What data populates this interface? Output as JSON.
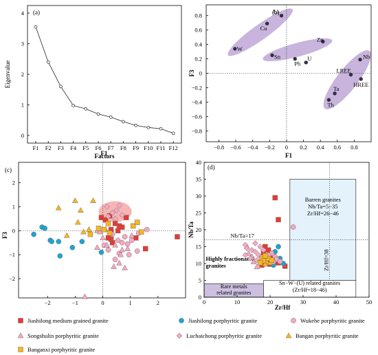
{
  "chart_data": [
    {
      "panel": "(a)",
      "type": "line",
      "ylabel": "Eigenvalue",
      "xlabel": "Factors",
      "categories": [
        "F1",
        "F2",
        "F3",
        "F4",
        "F5",
        "F6",
        "F7",
        "F8",
        "F9",
        "F10",
        "F11",
        "F12"
      ],
      "values": [
        3.55,
        2.4,
        1.6,
        0.98,
        0.87,
        0.7,
        0.6,
        0.45,
        0.33,
        0.26,
        0.22,
        0.07
      ],
      "ylim": [
        -0.25,
        4.25
      ],
      "yticks": [
        0,
        1,
        2,
        3,
        4
      ]
    },
    {
      "panel": "(b)",
      "type": "scatter",
      "xlabel": "F1",
      "ylabel": "F3",
      "xlim": [
        -0.95,
        1.0
      ],
      "ylim": [
        -0.95,
        0.95
      ],
      "xticks": [
        -0.8,
        -0.6,
        -0.4,
        -0.2,
        0,
        0.2,
        0.4,
        0.6,
        0.8
      ],
      "yticks": [
        -0.8,
        -0.6,
        -0.4,
        -0.2,
        0,
        0.2,
        0.4,
        0.6,
        0.8
      ],
      "points": [
        {
          "label": "Li",
          "x": -0.06,
          "y": 0.8
        },
        {
          "label": "Cu",
          "x": -0.23,
          "y": 0.69
        },
        {
          "label": "W",
          "x": -0.61,
          "y": 0.34
        },
        {
          "label": "Sn",
          "x": -0.17,
          "y": 0.25
        },
        {
          "label": "Pb",
          "x": 0.1,
          "y": 0.2
        },
        {
          "label": "U",
          "x": 0.23,
          "y": 0.15
        },
        {
          "label": "Zn",
          "x": 0.43,
          "y": 0.44
        },
        {
          "label": "Nb",
          "x": 0.87,
          "y": 0.19
        },
        {
          "label": "LREE",
          "x": 0.76,
          "y": -0.02
        },
        {
          "label": "HREE",
          "x": 0.88,
          "y": -0.08
        },
        {
          "label": "Ta",
          "x": 0.57,
          "y": -0.28
        },
        {
          "label": "Th",
          "x": 0.5,
          "y": -0.37
        }
      ],
      "groups": [
        [
          "Li",
          "Cu",
          "W"
        ],
        [
          "Sn",
          "Pb",
          "U",
          "Zn"
        ],
        [
          "Nb",
          "LREE",
          "HREE",
          "Ta",
          "Th"
        ]
      ]
    },
    {
      "panel": "(c)",
      "type": "scatter",
      "xlabel": "F1",
      "ylabel": "F3",
      "xlim": [
        -3.05,
        3.0
      ],
      "ylim": [
        -2.8,
        2.85
      ],
      "xticks": [
        -2,
        -1,
        0,
        1,
        2
      ],
      "yticks": [
        -2,
        -1,
        0,
        1,
        2
      ],
      "series": [
        {
          "name": "Jiashilong medium grained granite",
          "marker": "square",
          "color": "#e53a33",
          "points": [
            [
              -0.05,
              0.55
            ],
            [
              0.1,
              0.45
            ],
            [
              0.25,
              0.62
            ],
            [
              0.45,
              0.3
            ],
            [
              0.6,
              0.2
            ],
            [
              0.7,
              0.15
            ],
            [
              0.3,
              0.05
            ],
            [
              0.55,
              0.0
            ],
            [
              0.85,
              0.55
            ],
            [
              1.2,
              -0.3
            ],
            [
              1.55,
              -0.75
            ],
            [
              2.7,
              -0.25
            ],
            [
              0.3,
              -0.35
            ],
            [
              0.35,
              -0.5
            ],
            [
              0.2,
              -0.3
            ]
          ]
        },
        {
          "name": "Jiashilong porphyritic granite",
          "marker": "circle",
          "color": "#1aa6d3",
          "points": [
            [
              -2.2,
              0.15
            ],
            [
              -2.1,
              0.1
            ],
            [
              -2.5,
              -0.15
            ],
            [
              -1.9,
              -0.4
            ],
            [
              -1.85,
              -0.45
            ],
            [
              -1.6,
              -0.45
            ],
            [
              -1.55,
              -1.05
            ],
            [
              -1.1,
              -0.7
            ],
            [
              -0.75,
              -0.45
            ],
            [
              -0.05,
              -0.9
            ]
          ]
        },
        {
          "name": "Wukehe porphyritic granite",
          "marker": "circle",
          "color": "#f3a9c2",
          "points": [
            [
              0.35,
              -0.15
            ],
            [
              0.55,
              -0.4
            ],
            [
              0.7,
              -0.5
            ],
            [
              0.9,
              -0.55
            ],
            [
              1.05,
              -0.4
            ],
            [
              1.25,
              -0.85
            ],
            [
              0.95,
              -1.0
            ],
            [
              0.6,
              -0.95
            ],
            [
              0.45,
              -1.2
            ],
            [
              0.2,
              -0.8
            ],
            [
              0.8,
              -0.25
            ],
            [
              1.3,
              -0.1
            ],
            [
              1.6,
              0.05
            ],
            [
              0.05,
              -0.6
            ]
          ]
        },
        {
          "name": "Songshulin porphyritic granite",
          "marker": "triangle",
          "color": "#f3a9c2",
          "points": [
            [
              -0.2,
              0.0
            ],
            [
              -0.1,
              -0.05
            ],
            [
              0.1,
              0.05
            ],
            [
              0.0,
              -0.3
            ],
            [
              0.45,
              -0.6
            ],
            [
              0.7,
              -0.8
            ],
            [
              0.9,
              -0.75
            ],
            [
              0.6,
              -1.35
            ],
            [
              0.4,
              -1.5
            ],
            [
              0.8,
              -1.55
            ],
            [
              0.65,
              -1.0
            ],
            [
              -0.65,
              -2.75
            ],
            [
              -0.2,
              -0.7
            ],
            [
              0.15,
              -0.6
            ],
            [
              1.05,
              -0.2
            ]
          ]
        },
        {
          "name": "Luchaichong porphyritic granite",
          "marker": "diamond",
          "color": "#f3a9c2",
          "points": [
            [
              0.2,
              0.6
            ],
            [
              0.35,
              0.75
            ],
            [
              0.5,
              0.85
            ],
            [
              0.6,
              1.05
            ],
            [
              0.45,
              0.5
            ],
            [
              0.7,
              0.65
            ],
            [
              0.15,
              1.0
            ]
          ]
        },
        {
          "name": "Bangan porphyritic granite",
          "marker": "triangle",
          "color": "#f5b820",
          "points": [
            [
              -1.6,
              0.95
            ],
            [
              -1.0,
              1.25
            ],
            [
              -0.8,
              0.85
            ],
            [
              -0.9,
              0.35
            ],
            [
              -0.7,
              -0.05
            ],
            [
              -1.3,
              -0.2
            ],
            [
              -0.5,
              0.05
            ],
            [
              -0.35,
              1.25
            ]
          ]
        },
        {
          "name": "Banganxi porphyritic granite",
          "marker": "square",
          "color": "#f5b820",
          "points": [
            [
              0.05,
              0.05
            ],
            [
              0.25,
              -0.1
            ],
            [
              1.1,
              0.2
            ],
            [
              1.25,
              0.35
            ],
            [
              -0.45,
              -0.15
            ],
            [
              -0.15,
              0.1
            ],
            [
              1.4,
              -0.05
            ],
            [
              0.2,
              0.3
            ]
          ]
        }
      ]
    },
    {
      "panel": "(d)",
      "type": "scatter",
      "xlabel": "Zr/Hf",
      "ylabel": "Nb/Ta",
      "xlim": [
        0,
        50
      ],
      "ylim": [
        0,
        40
      ],
      "xticks": [
        0,
        10,
        20,
        30,
        40,
        50
      ],
      "yticks": [
        0,
        5,
        10,
        15,
        20,
        25,
        30,
        35,
        40
      ],
      "ref_lines": [
        {
          "axis": "y",
          "value": 17,
          "label": "Nb/Ta=17"
        },
        {
          "axis": "x",
          "value": 38,
          "label": "Zr/Hf=38"
        }
      ],
      "series": [
        {
          "name": "Jiashilong medium grained granite",
          "marker": "square",
          "color": "#e53a33",
          "points": [
            [
              21.5,
              29.5
            ],
            [
              22.5,
              23
            ],
            [
              18.5,
              15
            ],
            [
              18,
              13.2
            ],
            [
              19.5,
              14
            ],
            [
              20.5,
              12
            ],
            [
              21.5,
              10.5
            ],
            [
              19,
              11
            ],
            [
              20,
              9.8
            ],
            [
              17.5,
              9.5
            ],
            [
              24.5,
              9.2
            ],
            [
              22.5,
              10.2
            ]
          ]
        },
        {
          "name": "Jiashilong porphyritic granite",
          "marker": "circle",
          "color": "#1aa6d3",
          "points": [
            [
              22.5,
              15
            ],
            [
              21.5,
              13.5
            ],
            [
              23,
              11.5
            ],
            [
              24,
              10
            ],
            [
              21,
              9.5
            ],
            [
              20.5,
              10.5
            ]
          ]
        },
        {
          "name": "Wukehe porphyritic granite",
          "marker": "circle",
          "color": "#f3a9c2",
          "points": [
            [
              27,
              20.8
            ],
            [
              20.5,
              13
            ],
            [
              21.5,
              12
            ],
            [
              22,
              11.2
            ],
            [
              21,
              10.5
            ],
            [
              19.5,
              12.5
            ],
            [
              23,
              10.6
            ]
          ]
        },
        {
          "name": "Songshulin porphyritic granite",
          "marker": "triangle",
          "color": "#f3a9c2",
          "points": [
            [
              13.5,
              13
            ],
            [
              14.5,
              12
            ],
            [
              15,
              10.5
            ],
            [
              16,
              9
            ],
            [
              17.5,
              11.5
            ],
            [
              13,
              15
            ]
          ]
        },
        {
          "name": "Luchaichong porphyritic granite",
          "marker": "diamond",
          "color": "#f3a9c2",
          "points": [
            [
              12.5,
              15.5
            ],
            [
              13,
              14.5
            ],
            [
              14.5,
              14
            ],
            [
              15.5,
              13.5
            ],
            [
              16.5,
              12.5
            ],
            [
              14,
              11.5
            ],
            [
              12.5,
              12.5
            ],
            [
              17,
              15
            ],
            [
              15.5,
              16
            ],
            [
              18,
              14
            ],
            [
              16,
              11
            ]
          ]
        },
        {
          "name": "Bangan porphyritic granite",
          "marker": "triangle",
          "color": "#f5b820",
          "points": [
            [
              19,
              10.5
            ],
            [
              18.5,
              9.8
            ],
            [
              20,
              10.2
            ]
          ]
        },
        {
          "name": "Banganxi porphyritic granite",
          "marker": "square",
          "color": "#f5b820",
          "points": [
            [
              17.5,
              11.5
            ],
            [
              18,
              10.8
            ],
            [
              19.5,
              11.5
            ],
            [
              20.5,
              11
            ],
            [
              17,
              10.2
            ],
            [
              18.5,
              12.3
            ]
          ]
        }
      ],
      "regions": [
        {
          "label_lines": [
            "Barren granites",
            "Nb/Ta=5−35",
            "Zr/Hf=26−46"
          ],
          "xrange": [
            26,
            46
          ],
          "yrange": [
            5,
            35
          ]
        },
        {
          "label_lines": [
            "Sn−W−(U) related granites",
            "(Zr/Hf=18−46)"
          ],
          "xrange": [
            18,
            46
          ],
          "yrange": [
            0,
            5
          ]
        },
        {
          "label_lines": [
            "Rare metals",
            "related granites"
          ],
          "xrange": [
            0,
            18
          ],
          "yrange": [
            0,
            4
          ]
        }
      ],
      "annotations": [
        [
          "Highly fractionated",
          "granites"
        ]
      ]
    }
  ],
  "legend": [
    {
      "name": "Jiashilong medium grained granite",
      "marker": "square",
      "color": "#e53a33"
    },
    {
      "name": "Jiashilong porphyritic granite",
      "marker": "circle",
      "color": "#1aa6d3"
    },
    {
      "name": "Wukehe porphyritic granite",
      "marker": "circle",
      "color": "#f3a9c2"
    },
    {
      "name": "Songshulin porphyritic granite",
      "marker": "triangle",
      "color": "#f3a9c2"
    },
    {
      "name": "Luchaichong porphyritic granite",
      "marker": "diamond",
      "color": "#f3a9c2"
    },
    {
      "name": "Bangan porphyritic granite",
      "marker": "triangle",
      "color": "#f5b820"
    },
    {
      "name": "Banganxi porphyritic granite",
      "marker": "square",
      "color": "#f5b820"
    }
  ],
  "colors": {
    "group_fill": "#c8b4dc",
    "highlight_fill": "#f7b6b4",
    "barren_fill": "#e4f2fb",
    "rare_fill": "#cdbfe0"
  }
}
